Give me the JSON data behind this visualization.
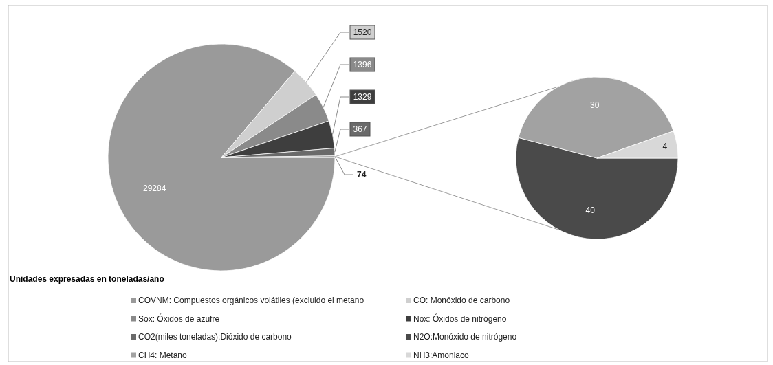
{
  "chart_data": [
    {
      "type": "pie",
      "title": "Unidades expresadas en toneladas/año",
      "categories": [
        "COVNM: Compuestos orgánicos volátiles (excluido el metano",
        "CO: Monóxido de carbono",
        "Sox: Óxidos de azufre",
        "Nox: Óxidos de nitrógeno",
        "CO2(miles toneladas):Dióxido de carbono",
        null
      ],
      "values": [
        29284,
        1520,
        1396,
        1329,
        367,
        74
      ],
      "colors": [
        "#9a9a9a",
        "#cfcfcf",
        "#8a8a8a",
        "#3e3e3e",
        "#6a6a6a",
        "#8e8e8e"
      ],
      "data_labels": true,
      "legend": "bottom"
    },
    {
      "type": "pie",
      "categories": [
        "N2O:Monóxido de nitrógeno",
        "CH4: Metano",
        "NH3:Amoniaco"
      ],
      "values": [
        40,
        30,
        4
      ],
      "colors": [
        "#4a4a4a",
        "#a2a2a2",
        "#d8d8d8"
      ],
      "data_labels": true,
      "legend": "bottom"
    }
  ]
}
